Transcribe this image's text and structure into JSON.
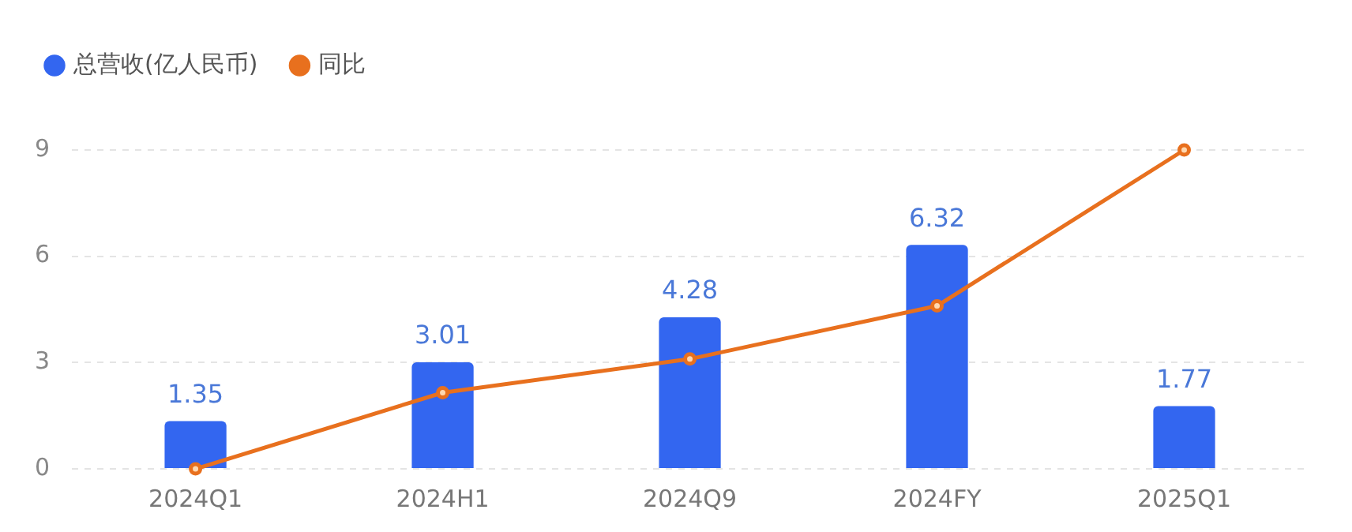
{
  "chart_data": {
    "type": "bar",
    "categories": [
      "2024Q1",
      "2024H1",
      "2024Q9",
      "2024FY",
      "2025Q1"
    ],
    "series": [
      {
        "name": "总营收(亿人民币)",
        "color": "#3366f0",
        "values": [
          1.35,
          3.01,
          4.28,
          6.32,
          1.77
        ]
      },
      {
        "name": "同比",
        "type": "line",
        "color": "#e8701e",
        "values": [
          0,
          2.15,
          3.1,
          4.6,
          9.0
        ]
      }
    ],
    "value_labels": [
      "1.35",
      "3.01",
      "4.28",
      "6.32",
      "1.77"
    ],
    "ylim": [
      0,
      9
    ],
    "yticks": [
      0,
      3,
      6,
      9
    ],
    "grid": "y",
    "legend": "top left",
    "marker": "circle"
  }
}
